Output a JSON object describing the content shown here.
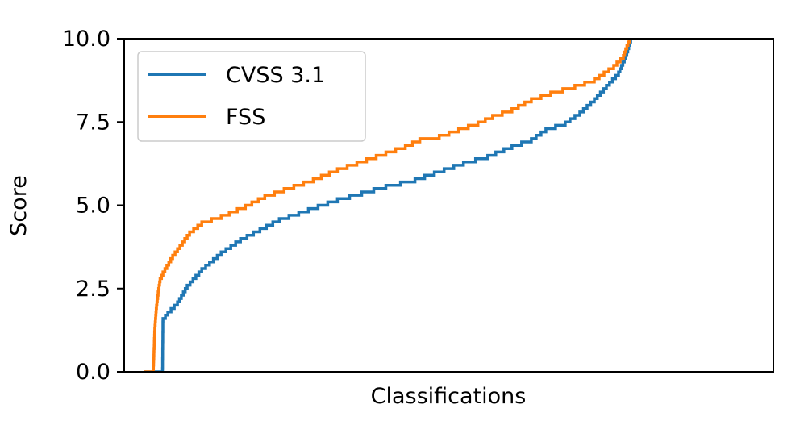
{
  "chart_data": {
    "type": "line",
    "title": "",
    "xlabel": "Classifications",
    "ylabel": "Score",
    "ylim": [
      0,
      10
    ],
    "xlim": [
      0,
      1
    ],
    "yticks": [
      "0.0",
      "2.5",
      "5.0",
      "7.5",
      "10.0"
    ],
    "yticks_values": [
      0,
      2.5,
      5,
      7.5,
      10
    ],
    "xticks": [],
    "grid": false,
    "legend_position": "top-left",
    "series": [
      {
        "name": "CVSS 3.1",
        "color": "#1f77b4",
        "step": 0.1,
        "points": [
          [
            0.04,
            0.0
          ],
          [
            0.079,
            0.0
          ],
          [
            0.08,
            1.6
          ],
          [
            0.09,
            1.8
          ],
          [
            0.11,
            2.1
          ],
          [
            0.13,
            2.6
          ],
          [
            0.16,
            3.1
          ],
          [
            0.2,
            3.6
          ],
          [
            0.24,
            4.0
          ],
          [
            0.28,
            4.3
          ],
          [
            0.32,
            4.6
          ],
          [
            0.36,
            4.8
          ],
          [
            0.4,
            5.0
          ],
          [
            0.44,
            5.2
          ],
          [
            0.49,
            5.4
          ],
          [
            0.54,
            5.6
          ],
          [
            0.6,
            5.8
          ],
          [
            0.66,
            6.1
          ],
          [
            0.7,
            6.3
          ],
          [
            0.75,
            6.5
          ],
          [
            0.8,
            6.8
          ],
          [
            0.84,
            7.0
          ],
          [
            0.87,
            7.3
          ],
          [
            0.91,
            7.5
          ],
          [
            0.94,
            7.8
          ],
          [
            0.97,
            8.2
          ],
          [
            0.995,
            8.6
          ],
          [
            1.02,
            9.0
          ],
          [
            1.035,
            9.5
          ],
          [
            1.045,
            10.0
          ]
        ]
      },
      {
        "name": "FSS",
        "color": "#ff7f0e",
        "step": 0.1,
        "points": [
          [
            0.04,
            0.0
          ],
          [
            0.06,
            0.0
          ],
          [
            0.063,
            1.3
          ],
          [
            0.066,
            1.9
          ],
          [
            0.07,
            2.4
          ],
          [
            0.074,
            2.8
          ],
          [
            0.08,
            3.0
          ],
          [
            0.1,
            3.5
          ],
          [
            0.115,
            3.8
          ],
          [
            0.135,
            4.2
          ],
          [
            0.16,
            4.5
          ],
          [
            0.2,
            4.7
          ],
          [
            0.25,
            5.0
          ],
          [
            0.29,
            5.3
          ],
          [
            0.33,
            5.5
          ],
          [
            0.39,
            5.8
          ],
          [
            0.44,
            6.1
          ],
          [
            0.48,
            6.3
          ],
          [
            0.54,
            6.6
          ],
          [
            0.58,
            6.8
          ],
          [
            0.61,
            7.0
          ],
          [
            0.65,
            7.1
          ],
          [
            0.69,
            7.3
          ],
          [
            0.73,
            7.5
          ],
          [
            0.76,
            7.7
          ],
          [
            0.8,
            7.9
          ],
          [
            0.84,
            8.2
          ],
          [
            0.88,
            8.4
          ],
          [
            0.93,
            8.6
          ],
          [
            0.97,
            8.8
          ],
          [
            1.01,
            9.2
          ],
          [
            1.03,
            9.5
          ],
          [
            1.042,
            10.0
          ]
        ]
      }
    ]
  }
}
